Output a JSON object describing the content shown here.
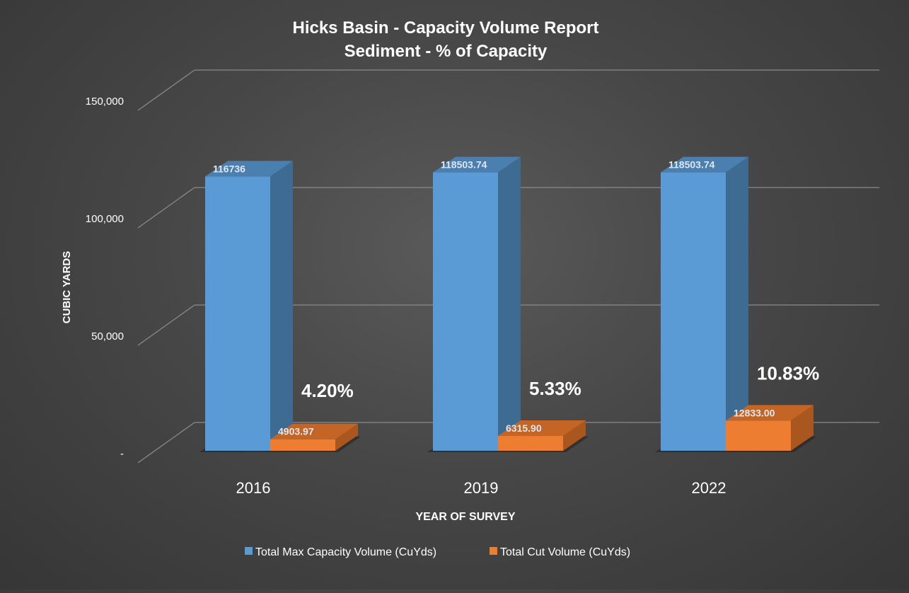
{
  "chart_data": {
    "type": "bar",
    "title": "Hicks Basin - Capacity Volume Report",
    "subtitle": "Sediment - % of Capacity",
    "xlabel": "YEAR OF SURVEY",
    "ylabel": "CUBIC YARDS",
    "categories": [
      "2016",
      "2019",
      "2022"
    ],
    "ylim": [
      0,
      150000
    ],
    "yticks": [
      0,
      50000,
      100000,
      150000
    ],
    "ytick_labels": [
      "-",
      "50,000",
      "100,000",
      "150,000"
    ],
    "grid": true,
    "three_d": true,
    "legend_position": "bottom",
    "series": [
      {
        "name": "Total Max Capacity Volume (CuYds)",
        "values": [
          116736,
          118503.74,
          118503.74
        ],
        "data_labels": [
          "116736",
          "118503.74",
          "118503.74"
        ],
        "color": "#5b9bd5",
        "side_color": "#3e6b92",
        "top_color": "#4a7fb0"
      },
      {
        "name": "Total Cut Volume (CuYds)",
        "values": [
          4903.97,
          6315.9,
          12833.0
        ],
        "data_labels": [
          "4903.97",
          "6315.90",
          "12833.00"
        ],
        "color": "#ed7d31",
        "side_color": "#a9561f",
        "top_color": "#c46526"
      }
    ],
    "annotations": [
      "4.20%",
      "5.33%",
      "10.83%"
    ]
  }
}
